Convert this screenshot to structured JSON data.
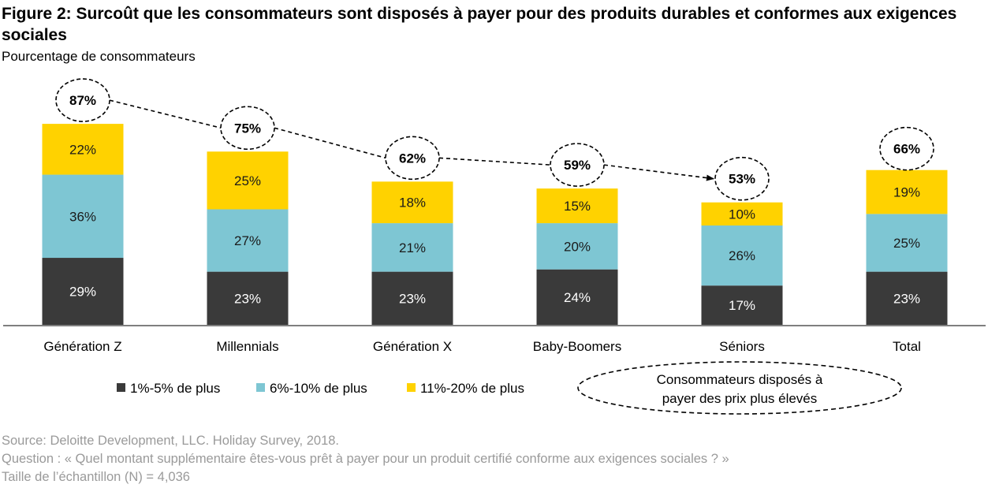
{
  "header": {
    "title": "Figure 2: Surcoût que les consommateurs sont disposés à payer pour des produits durables et conformes aux exigences sociales",
    "subtitle": "Pourcentage de consommateurs"
  },
  "chart_data": {
    "type": "bar",
    "stacked": true,
    "categories": [
      "Génération Z",
      "Millennials",
      "Génération X",
      "Baby-Boomers",
      "Séniors",
      "Total"
    ],
    "series": [
      {
        "name": "1%-5% de plus",
        "color": "#3a3a3a",
        "label_color": "#ffffff",
        "values": [
          29,
          23,
          23,
          24,
          17,
          23
        ]
      },
      {
        "name": "6%-10% de plus",
        "color": "#7ec6d3",
        "label_color": "#1a1a1a",
        "values": [
          36,
          27,
          21,
          20,
          26,
          25
        ]
      },
      {
        "name": "11%-20% de plus",
        "color": "#ffd200",
        "label_color": "#1a1a1a",
        "values": [
          22,
          25,
          18,
          15,
          10,
          19
        ]
      }
    ],
    "totals": [
      87,
      75,
      62,
      59,
      53,
      66
    ],
    "value_suffix": "%",
    "trend_arrow": "dashed arrow connecting totals from Génération Z to Séniors",
    "ellipse_note": {
      "line1": "Consommateurs disposés à",
      "line2": "payer des prix plus élevés"
    },
    "legend_position": "bottom-left",
    "grid": false,
    "ylim": [
      0,
      100
    ]
  },
  "footer": {
    "source": "Source: Deloitte Development, LLC. Holiday Survey, 2018.",
    "question": "Question : « Quel montant supplémentaire êtes-vous prêt à payer pour un produit certifié conforme aux exigences sociales ? »",
    "sample": "Taille de l’échantillon  (N) = 4,036"
  }
}
